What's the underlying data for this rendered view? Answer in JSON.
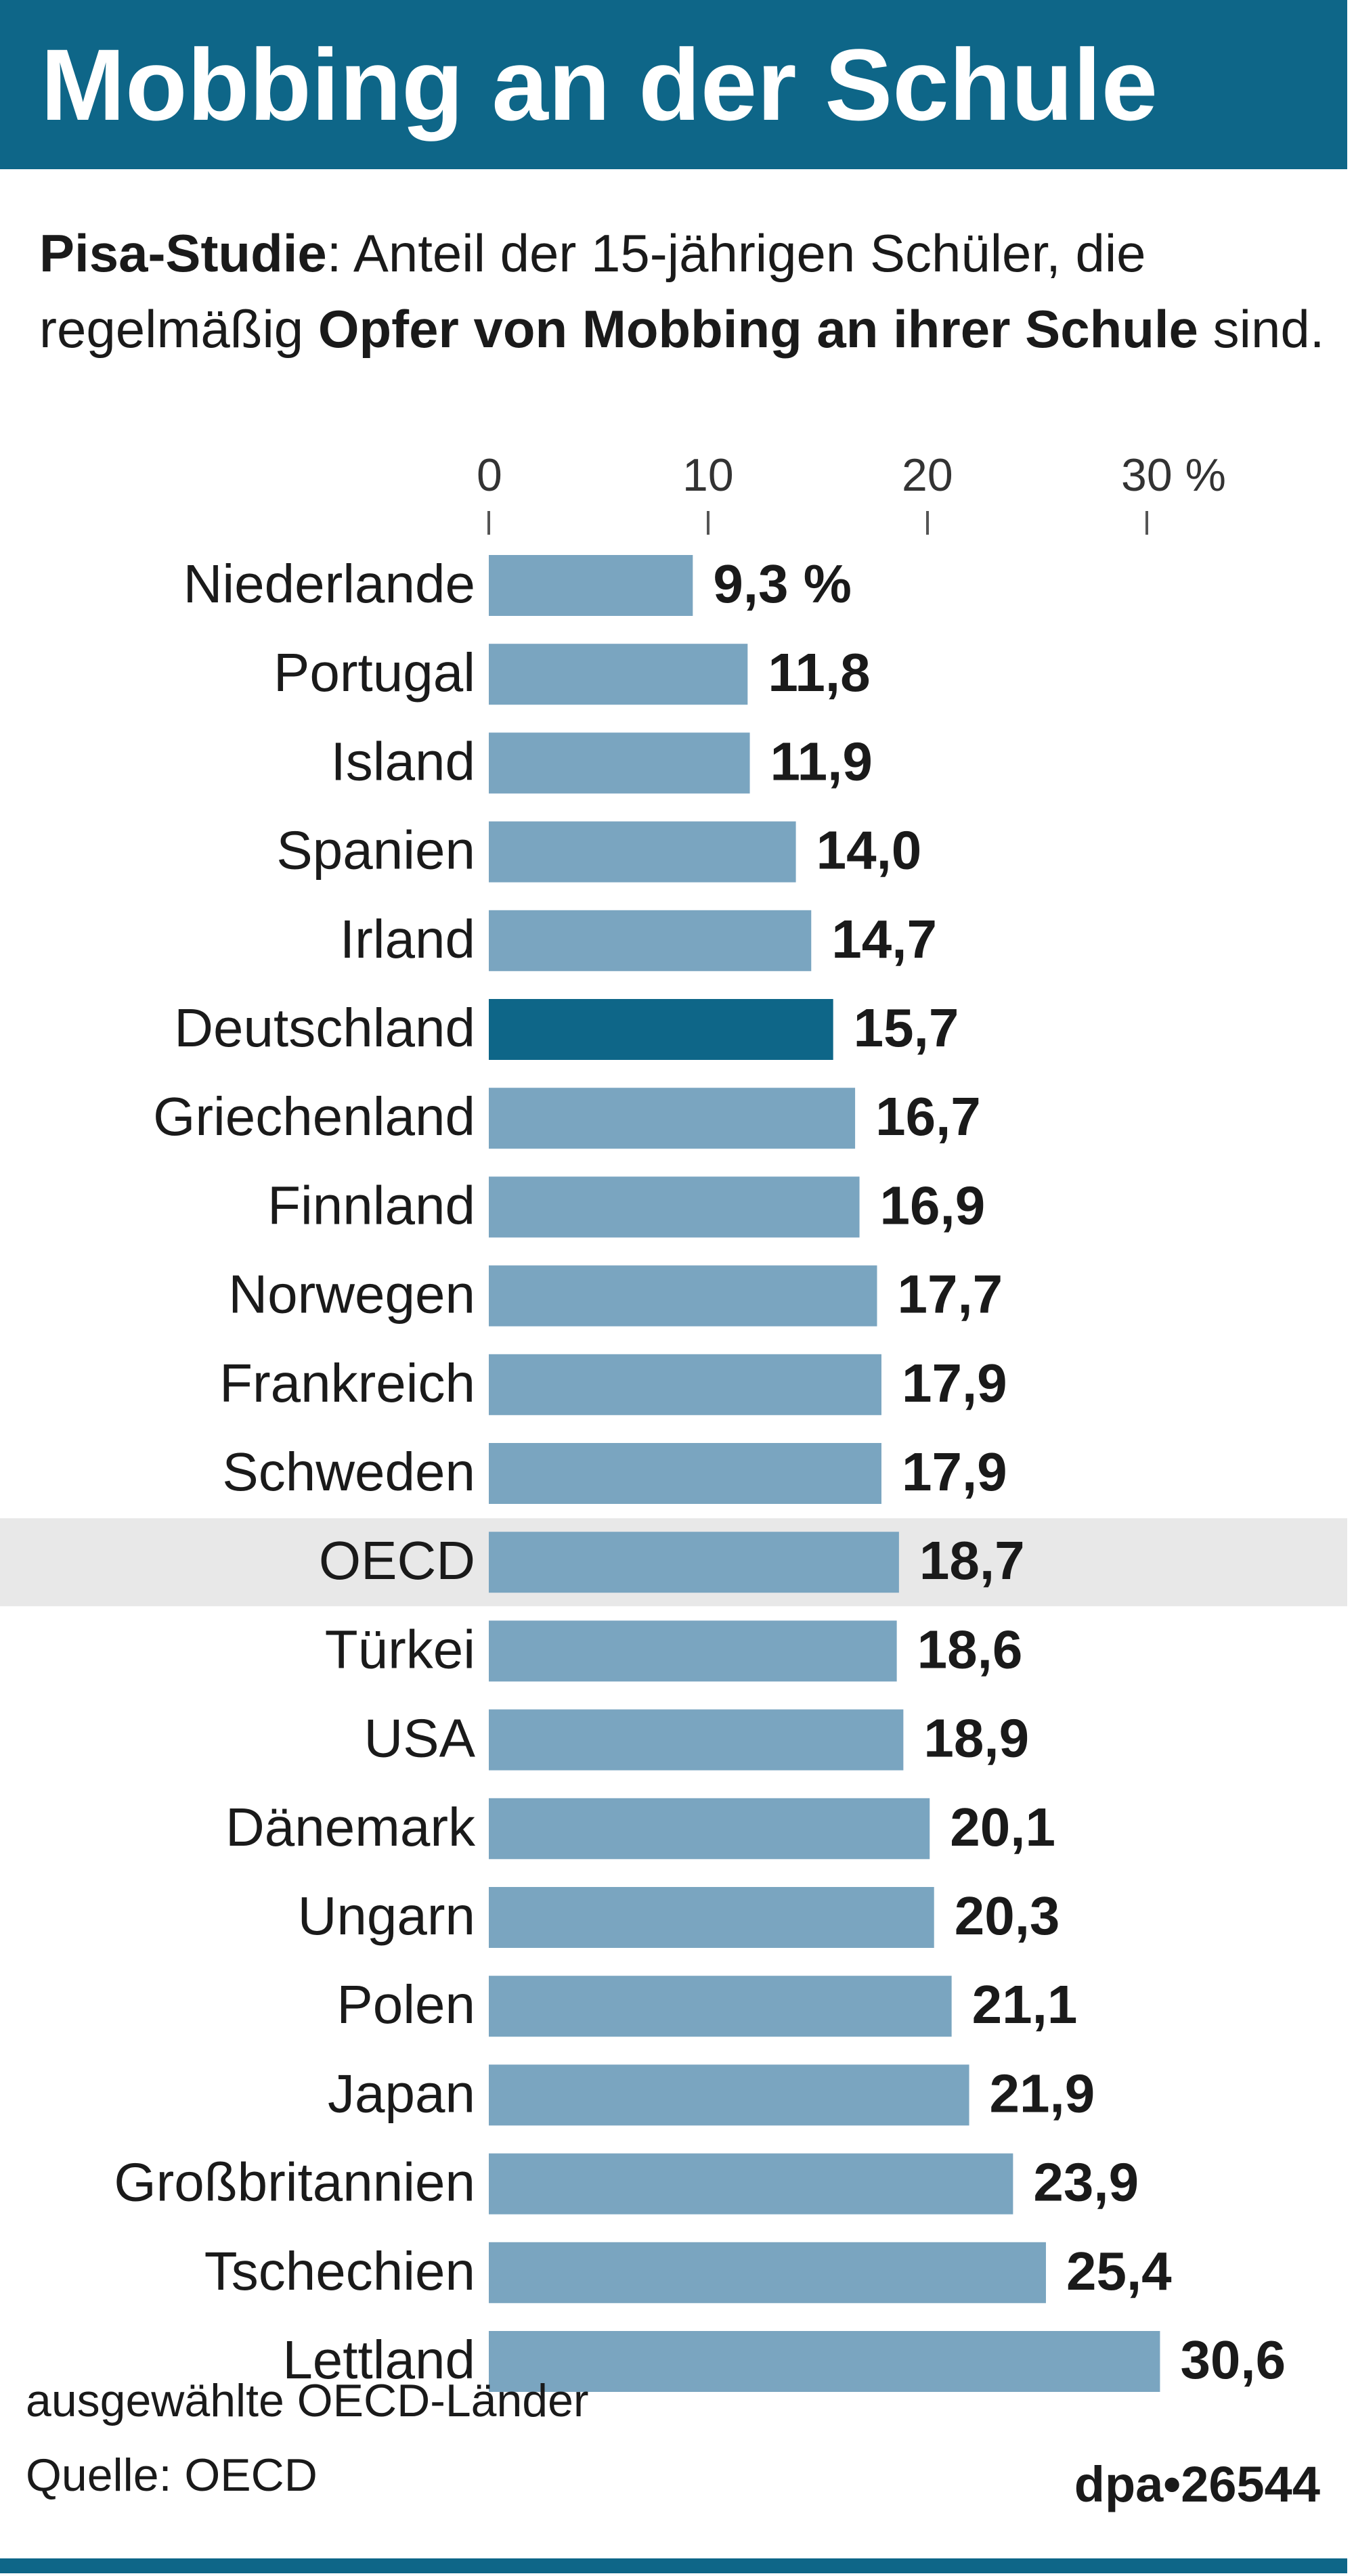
{
  "header": {
    "title": "Mobbing an der Schule"
  },
  "subtitle": {
    "lead_bold": "Pisa-Studie",
    "lead_text": ": Anteil der 15-jährigen Schüler, die regelmäßig ",
    "highlight_bold": "Opfer von Mobbing an ihrer Schule",
    "tail_text": " sind."
  },
  "chart_data": {
    "type": "bar",
    "orientation": "horizontal",
    "title": "Mobbing an der Schule",
    "xlabel": "",
    "ylabel": "",
    "xlim": [
      0,
      30
    ],
    "x_ticks": [
      "0",
      "10",
      "20",
      "30 %"
    ],
    "x_tick_values": [
      0,
      10,
      20,
      30
    ],
    "categories": [
      "Niederlande",
      "Portugal",
      "Island",
      "Spanien",
      "Irland",
      "Deutschland",
      "Griechenland",
      "Finnland",
      "Norwegen",
      "Frankreich",
      "Schweden",
      "OECD",
      "Türkei",
      "USA",
      "Dänemark",
      "Ungarn",
      "Polen",
      "Japan",
      "Großbritannien",
      "Tschechien",
      "Lettland"
    ],
    "values": [
      9.3,
      11.8,
      11.9,
      14.0,
      14.7,
      15.7,
      16.7,
      16.9,
      17.7,
      17.9,
      17.9,
      18.7,
      18.6,
      18.9,
      20.1,
      20.3,
      21.1,
      21.9,
      23.9,
      25.4,
      30.6
    ],
    "value_labels": [
      "9,3 %",
      "11,8",
      "11,9",
      "14,0",
      "14,7",
      "15,7",
      "16,7",
      "16,9",
      "17,7",
      "17,9",
      "17,9",
      "18,7",
      "18,6",
      "18,9",
      "20,1",
      "20,3",
      "21,1",
      "21,9",
      "23,9",
      "25,4",
      "30,6"
    ],
    "highlight_category": "Deutschland",
    "average_category": "OECD",
    "colors": {
      "bar": "#7aa5c0",
      "highlight": "#0e6688",
      "average_band": "#e8e8e8"
    }
  },
  "footer": {
    "note": "ausgewählte OECD-Länder",
    "source": "Quelle: OECD",
    "credit": "dpa•26544"
  }
}
